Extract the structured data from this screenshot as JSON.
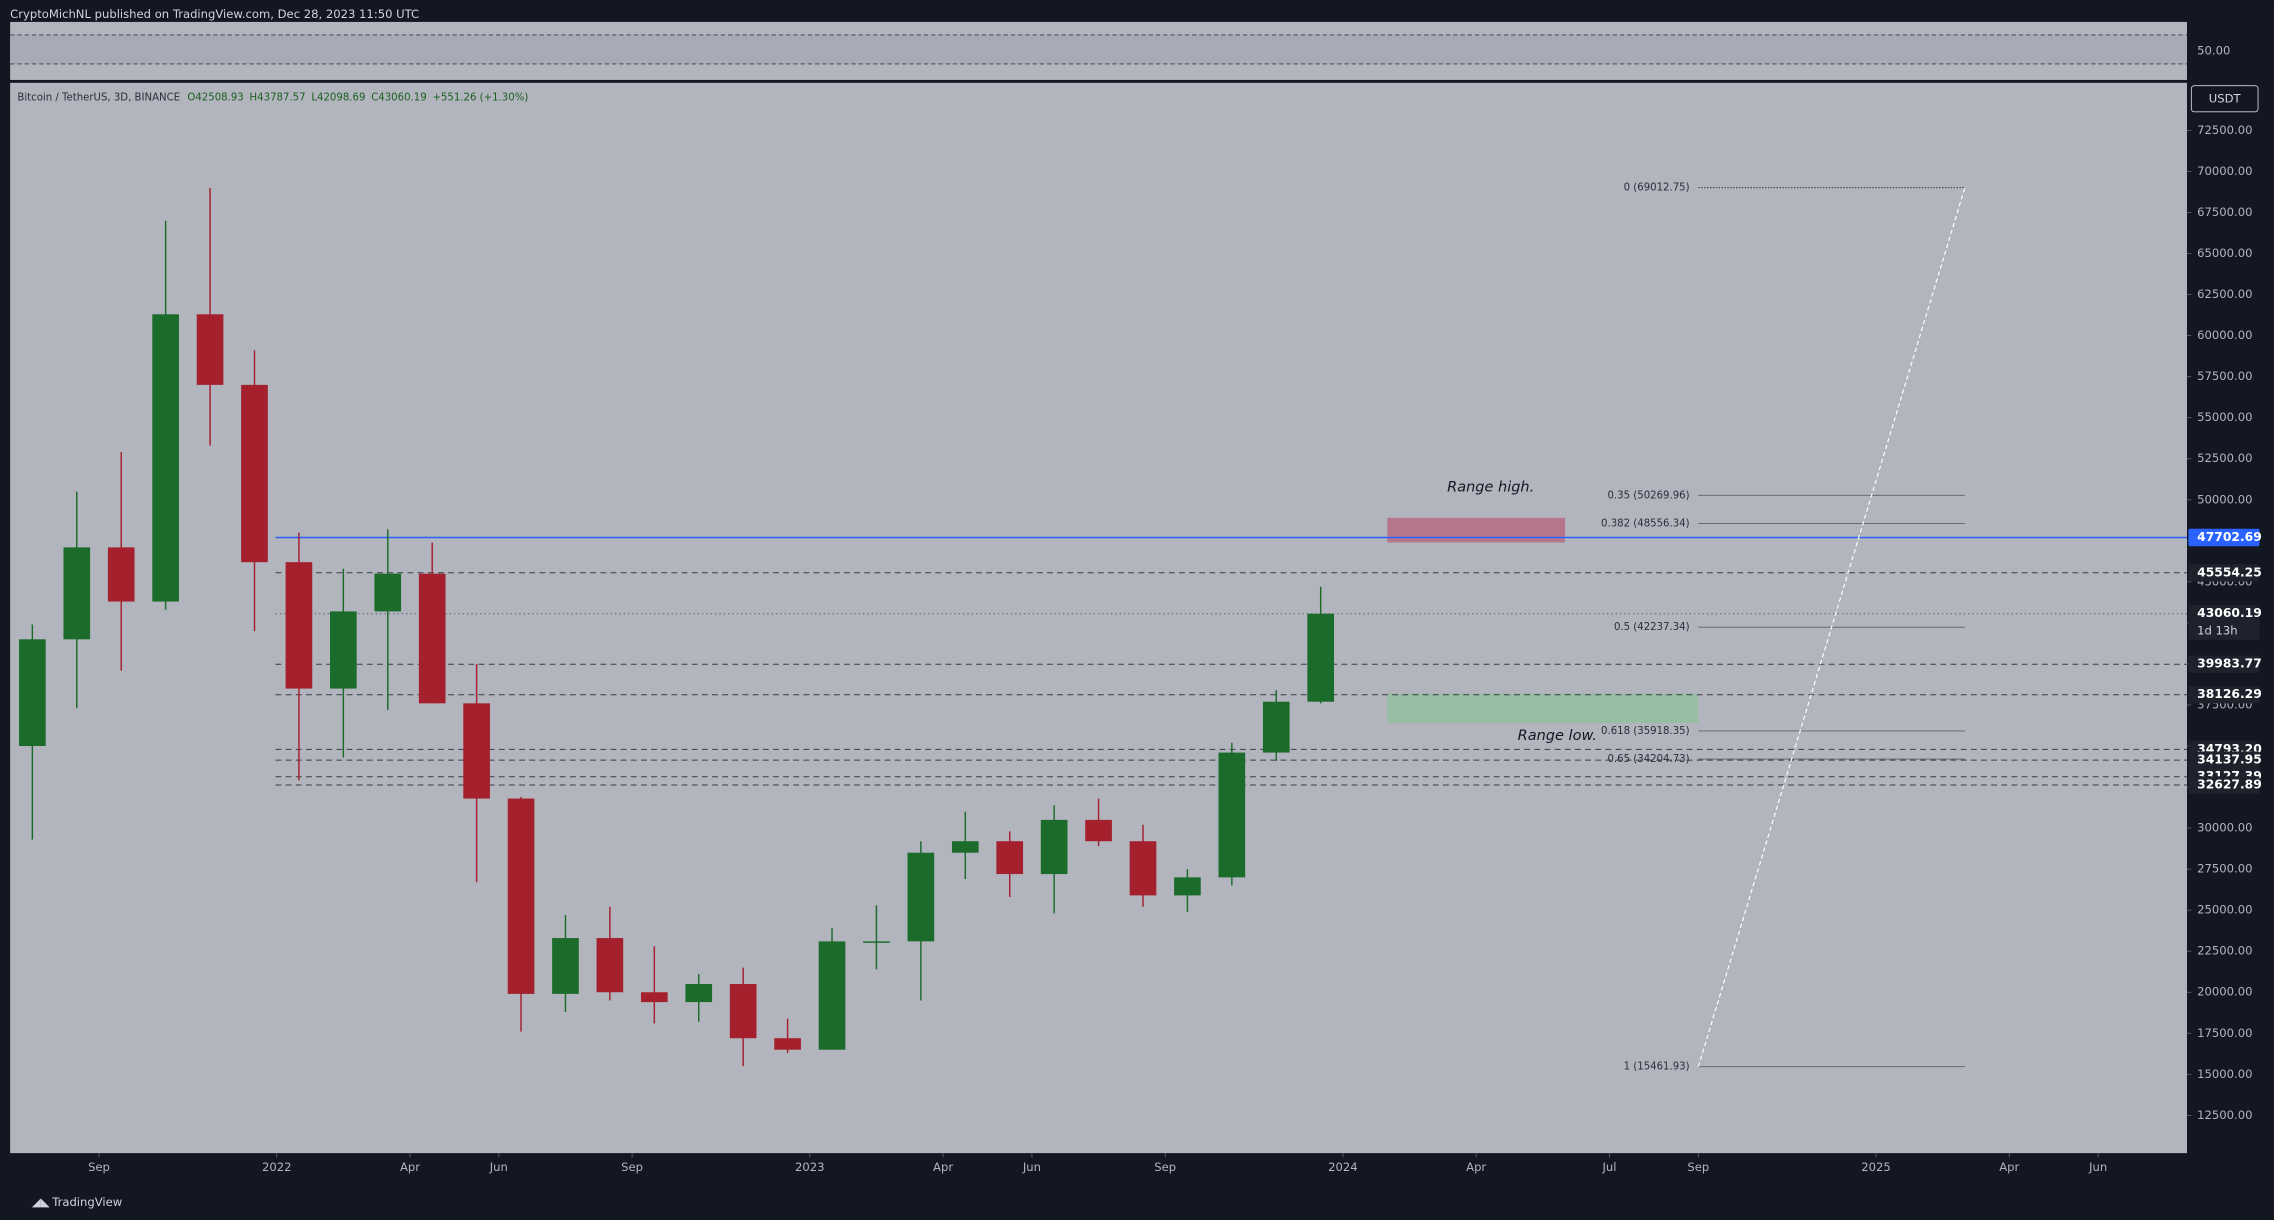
{
  "header": "CryptoMichNL published on TradingView.com, Dec 28, 2023 11:50 UTC",
  "footer": "TradingView",
  "currency": "USDT",
  "rsi": {
    "label": "50.00"
  },
  "chart_data": {
    "type": "candlestick",
    "title": "Bitcoin / TetherUS, 3D, BINANCE",
    "legend_values": [
      "O42508.93",
      "H43787.57",
      "L42098.69",
      "C43060.19",
      "+551.26 (+1.30%)"
    ],
    "x": [
      "2021-07",
      "2021-08",
      "2021-09",
      "2021-10",
      "2021-11",
      "2021-12",
      "2022-01",
      "2022-02",
      "2022-03",
      "2022-04",
      "2022-05",
      "2022-06",
      "2022-07",
      "2022-08",
      "2022-09",
      "2022-10",
      "2022-11",
      "2022-12",
      "2023-01",
      "2023-02",
      "2023-03",
      "2023-04",
      "2023-05",
      "2023-06",
      "2023-07",
      "2023-08",
      "2023-09",
      "2023-10",
      "2023-11",
      "2023-12"
    ],
    "open": [
      35000,
      41500,
      47100,
      43800,
      61300,
      57000,
      46200,
      38500,
      43200,
      45500,
      37600,
      31800,
      19900,
      23300,
      20000,
      19400,
      20500,
      17200,
      16500,
      23100,
      23100,
      28500,
      29200,
      27200,
      30500,
      29200,
      25900,
      27000,
      34600,
      37700
    ],
    "high": [
      42400,
      50500,
      52900,
      67000,
      69000,
      59100,
      48000,
      45800,
      48200,
      47400,
      40000,
      31900,
      24700,
      25200,
      22800,
      21100,
      21500,
      18400,
      23900,
      25300,
      29200,
      31000,
      29800,
      31400,
      31800,
      30200,
      27500,
      35200,
      38400,
      44700
    ],
    "low": [
      29300,
      37300,
      39600,
      43300,
      53300,
      42000,
      32900,
      34300,
      37200,
      37600,
      26700,
      17600,
      18800,
      19500,
      18100,
      18200,
      15500,
      16300,
      16500,
      21400,
      19500,
      26900,
      25800,
      24800,
      28900,
      25200,
      24900,
      26500,
      34100,
      37600
    ],
    "close": [
      41500,
      47100,
      43800,
      61300,
      57000,
      46200,
      38500,
      43200,
      45500,
      37600,
      31800,
      19900,
      23300,
      20000,
      19400,
      20500,
      17200,
      16500,
      23100,
      23100,
      28500,
      29200,
      27200,
      30500,
      29200,
      25900,
      27000,
      34600,
      37700,
      43060.19
    ],
    "up_color": "#1b6b2a",
    "down_color": "#a3202c",
    "xlim": [
      "2021-07",
      "2025-08"
    ],
    "xticks": [
      {
        "value": "2021-09",
        "label": "Sep"
      },
      {
        "value": "2022-01",
        "label": "2022"
      },
      {
        "value": "2022-04",
        "label": "Apr"
      },
      {
        "value": "2022-06",
        "label": "Jun"
      },
      {
        "value": "2022-09",
        "label": "Sep"
      },
      {
        "value": "2023-01",
        "label": "2023"
      },
      {
        "value": "2023-04",
        "label": "Apr"
      },
      {
        "value": "2023-06",
        "label": "Jun"
      },
      {
        "value": "2023-09",
        "label": "Sep"
      },
      {
        "value": "2024-01",
        "label": "2024"
      },
      {
        "value": "2024-04",
        "label": "Apr"
      },
      {
        "value": "2024-07",
        "label": "Jul"
      },
      {
        "value": "2024-09",
        "label": "Sep"
      },
      {
        "value": "2025-01",
        "label": "2025"
      },
      {
        "value": "2025-04",
        "label": "Apr"
      },
      {
        "value": "2025-06",
        "label": "Jun"
      }
    ],
    "ylim": [
      10200,
      75400
    ],
    "yticks": [
      {
        "value": 12500,
        "label": "12500.00"
      },
      {
        "value": 15000,
        "label": "15000.00"
      },
      {
        "value": 17500,
        "label": "17500.00"
      },
      {
        "value": 20000,
        "label": "20000.00"
      },
      {
        "value": 22500,
        "label": "22500.00"
      },
      {
        "value": 25000,
        "label": "25000.00"
      },
      {
        "value": 27500,
        "label": "27500.00"
      },
      {
        "value": 30000,
        "label": "30000.00"
      },
      {
        "value": 32500,
        "label": "32500.00"
      },
      {
        "value": 35000,
        "label": "35000.00"
      },
      {
        "value": 37500,
        "label": "37500.00"
      },
      {
        "value": 40000,
        "label": "40000.00"
      },
      {
        "value": 42500,
        "label": "42500.00"
      },
      {
        "value": 45000,
        "label": "45000.00"
      },
      {
        "value": 47500,
        "label": "47500.00"
      },
      {
        "value": 50000,
        "label": "50000.00"
      },
      {
        "value": 52500,
        "label": "52500.00"
      },
      {
        "value": 55000,
        "label": "55000.00"
      },
      {
        "value": 57500,
        "label": "57500.00"
      },
      {
        "value": 60000,
        "label": "60000.00"
      },
      {
        "value": 62500,
        "label": "62500.00"
      },
      {
        "value": 65000,
        "label": "65000.00"
      },
      {
        "value": 67500,
        "label": "67500.00"
      },
      {
        "value": 70000,
        "label": "70000.00"
      },
      {
        "value": 72500,
        "label": "72500.00"
      }
    ],
    "levels": [
      {
        "value": 47702.69,
        "label": "47702.69",
        "color": "#2962ff",
        "style": "solid"
      },
      {
        "value": 45554.25,
        "label": "45554.25",
        "color": "#3a3d47",
        "style": "dashed"
      },
      {
        "value": 43060.19,
        "label": "43060.19",
        "color": "#5d606b",
        "style": "dotted",
        "countdown": "1d 13h"
      },
      {
        "value": 39983.77,
        "label": "39983.77",
        "color": "#3a3d47",
        "style": "dashed"
      },
      {
        "value": 38126.29,
        "label": "38126.29",
        "color": "#3a3d47",
        "style": "dashed"
      },
      {
        "value": 34793.2,
        "label": "34793.20",
        "color": "#3a3d47",
        "style": "dashed"
      },
      {
        "value": 34137.95,
        "label": "34137.95",
        "color": "#3a3d47",
        "style": "dashed"
      },
      {
        "value": 33127.39,
        "label": "33127.39",
        "color": "#3a3d47",
        "style": "dashed"
      },
      {
        "value": 32627.89,
        "label": "32627.89",
        "color": "#3a3d47",
        "style": "dashed"
      }
    ],
    "fib": {
      "start": "2024-09",
      "end": "2025-03",
      "levels": [
        {
          "value": 69012.75,
          "label": "0 (69012.75)"
        },
        {
          "value": 50269.96,
          "label": "0.35 (50269.96)"
        },
        {
          "value": 48556.34,
          "label": "0.382 (48556.34)"
        },
        {
          "value": 42237.34,
          "label": "0.5 (42237.34)"
        },
        {
          "value": 35918.35,
          "label": "0.618 (35918.35)"
        },
        {
          "value": 34204.73,
          "label": "0.65 (34204.73)"
        },
        {
          "value": 15461.93,
          "label": "1 (15461.93)"
        }
      ]
    },
    "zones": [
      {
        "name": "Range high.",
        "top": 48900,
        "bottom": 47400,
        "start": "2024-02",
        "end": "2024-06",
        "color": "#b5607a",
        "label_side": "above"
      },
      {
        "name": "Range low.",
        "top": 38200,
        "bottom": 36400,
        "start": "2024-02",
        "end": "2024-09",
        "color": "#8fc09a",
        "label_side": "below"
      }
    ]
  }
}
